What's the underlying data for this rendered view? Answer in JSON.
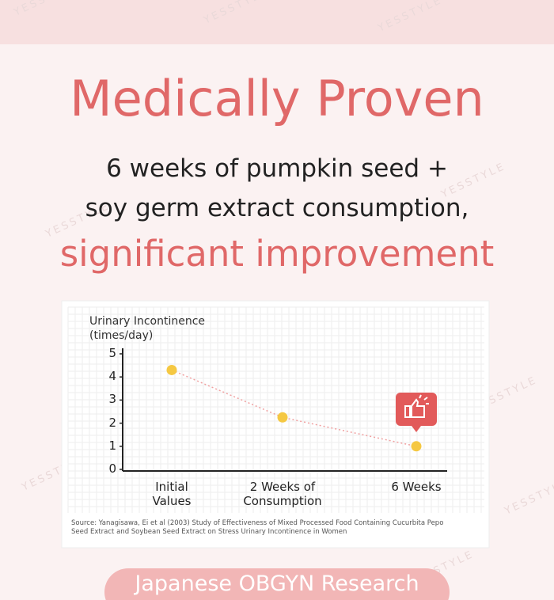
{
  "watermark": "YESSTYLE",
  "header": {
    "title": "Medically Proven",
    "subtitle": [
      "6 weeks of pumpkin seed +",
      "soy germ extract consumption,"
    ],
    "highlight": "significant improvement"
  },
  "chart_data": {
    "type": "line",
    "y_label": "Urinary Incontinence (times/day)",
    "categories": [
      "Initial Values",
      "2 Weeks of Consumption",
      "6 Weeks"
    ],
    "series": [
      {
        "color": "#f5c842",
        "line_color": "#f0a0a0",
        "values": [
          4.3,
          2.25,
          1
        ]
      }
    ],
    "ylim": [
      0,
      5
    ],
    "yticks": [
      0,
      1,
      2,
      3,
      4,
      5
    ],
    "grid": true,
    "source": "Source: Yanagisawa, Ei et al (2003) Study of Effectiveness of Mixed Processed Food Containing Cucurbita Pepo Seed Extract and Soybean Seed Extract on Stress Urinary Incontinence in Women"
  },
  "footer": {
    "label": "Japanese OBGYN Research"
  }
}
